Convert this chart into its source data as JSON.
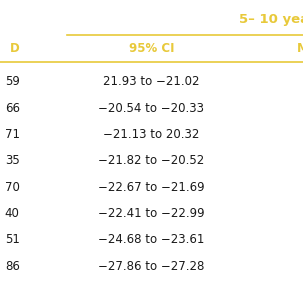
{
  "header_group": "5– 10 yea",
  "col1_header": "D",
  "col2_header": "95% CI",
  "col3_header": "M",
  "col1_values": [
    "59",
    "66",
    "71",
    "35",
    "70",
    "40",
    "51",
    "86"
  ],
  "col2_values": [
    "21.93 to −21.02",
    "−20.54 to −20.33",
    "−21.13 to 20.32",
    "−21.82 to −20.52",
    "−22.67 to −21.69",
    "−22.41 to −22.99",
    "−24.68 to −23.61",
    "−27.86 to −27.28"
  ],
  "col3_values": [
    "–",
    "–",
    "–",
    "–",
    "–",
    "–",
    "–",
    "–"
  ],
  "header_color": "#E8C93A",
  "text_color": "#1a1a1a",
  "bg_color": "#ffffff",
  "line_color": "#E8C93A",
  "header_fontsize": 8.5,
  "cell_fontsize": 8.5,
  "group_header_fontsize": 9.5
}
